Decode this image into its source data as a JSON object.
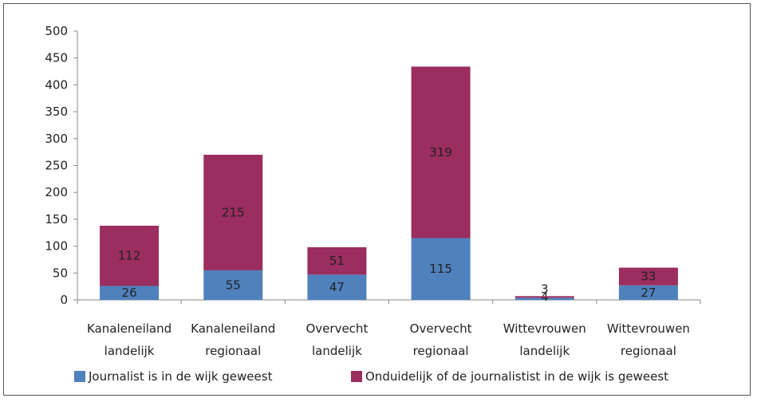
{
  "chart_data": {
    "type": "bar",
    "stacked": true,
    "categories": [
      [
        "Kanaleneiland",
        "landelijk"
      ],
      [
        "Kanaleneiland",
        "regionaal"
      ],
      [
        "Overvecht",
        "landelijk"
      ],
      [
        "Overvecht",
        "regionaal"
      ],
      [
        "Wittevrouwen",
        "landelijk"
      ],
      [
        "Wittevrouwen",
        "regionaal"
      ]
    ],
    "series": [
      {
        "name": "Journalist is in de wijk geweest",
        "color": "#4f81bd",
        "values": [
          26,
          55,
          47,
          115,
          4,
          27
        ]
      },
      {
        "name": "Onduidelijk of de journalistist in de wijk is geweest",
        "color": "#9b2d5f",
        "values": [
          112,
          215,
          51,
          319,
          3,
          33
        ]
      }
    ],
    "ylim": [
      0,
      500
    ],
    "yticks": [
      "0",
      "50",
      "100",
      "150",
      "200",
      "250",
      "300",
      "350",
      "400",
      "450",
      "500"
    ],
    "grid": false,
    "legend_position": "bottom"
  }
}
